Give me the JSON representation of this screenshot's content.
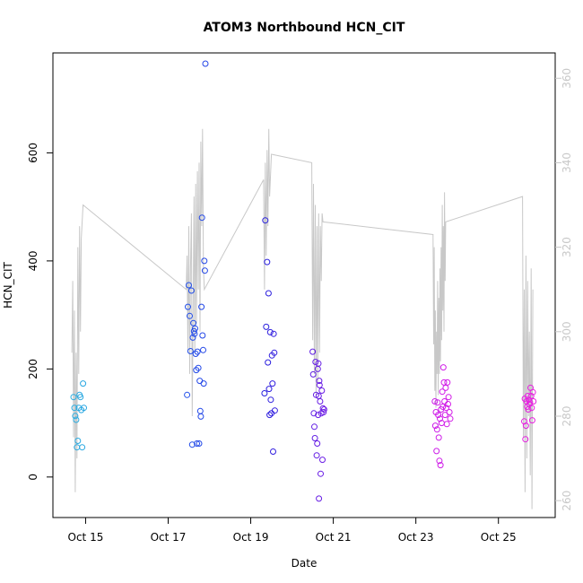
{
  "chart_data": {
    "type": "scatter",
    "title": "ATOM3 Northbound HCN_CIT",
    "xlabel": "Date",
    "ylabel": "HCN_CIT",
    "xlim": [
      "2017-10-14 05:00",
      "2017-10-26 09:00"
    ],
    "ylim": [
      -75,
      785
    ],
    "y2lim": [
      256,
      366
    ],
    "x_ticks": [
      {
        "date": "2017-10-15",
        "label": "Oct 15"
      },
      {
        "date": "2017-10-17",
        "label": "Oct 17"
      },
      {
        "date": "2017-10-19",
        "label": "Oct 19"
      },
      {
        "date": "2017-10-21",
        "label": "Oct 21"
      },
      {
        "date": "2017-10-23",
        "label": "Oct 23"
      },
      {
        "date": "2017-10-25",
        "label": "Oct 25"
      }
    ],
    "y_ticks": [
      0,
      200,
      400,
      600
    ],
    "y2_ticks": [
      260,
      280,
      300,
      320,
      340,
      360
    ],
    "grid": false,
    "legend": "none",
    "colors": {
      "frame": "#000000",
      "secondary_line": "#c8c8c8",
      "secondary_axis": "#c8c8c8",
      "point_ramp": [
        "#29aee0",
        "#2460ee",
        "#2020dd",
        "#8a1ce8",
        "#d01ce8",
        "#e820e0"
      ]
    },
    "points": [
      {
        "x": "2017-10-14 17:00",
        "y": 148
      },
      {
        "x": "2017-10-14 17:30",
        "y": 128
      },
      {
        "x": "2017-10-14 18:00",
        "y": 113
      },
      {
        "x": "2017-10-14 18:30",
        "y": 106
      },
      {
        "x": "2017-10-14 19:00",
        "y": 55
      },
      {
        "x": "2017-10-14 19:30",
        "y": 67
      },
      {
        "x": "2017-10-14 20:00",
        "y": 128
      },
      {
        "x": "2017-10-14 20:30",
        "y": 152
      },
      {
        "x": "2017-10-14 21:00",
        "y": 148
      },
      {
        "x": "2017-10-14 21:30",
        "y": 124
      },
      {
        "x": "2017-10-14 22:00",
        "y": 55
      },
      {
        "x": "2017-10-14 22:30",
        "y": 173
      },
      {
        "x": "2017-10-14 23:00",
        "y": 128
      },
      {
        "x": "2017-10-17 11:00",
        "y": 152
      },
      {
        "x": "2017-10-17 11:30",
        "y": 315
      },
      {
        "x": "2017-10-17 12:00",
        "y": 355
      },
      {
        "x": "2017-10-17 12:30",
        "y": 298
      },
      {
        "x": "2017-10-17 13:00",
        "y": 233
      },
      {
        "x": "2017-10-17 13:30",
        "y": 345
      },
      {
        "x": "2017-10-17 14:00",
        "y": 60
      },
      {
        "x": "2017-10-17 14:20",
        "y": 258
      },
      {
        "x": "2017-10-17 14:40",
        "y": 285
      },
      {
        "x": "2017-10-17 15:00",
        "y": 270
      },
      {
        "x": "2017-10-17 15:20",
        "y": 265
      },
      {
        "x": "2017-10-17 15:40",
        "y": 275
      },
      {
        "x": "2017-10-17 16:00",
        "y": 228
      },
      {
        "x": "2017-10-17 16:20",
        "y": 198
      },
      {
        "x": "2017-10-17 16:40",
        "y": 62
      },
      {
        "x": "2017-10-17 17:00",
        "y": 232
      },
      {
        "x": "2017-10-17 17:30",
        "y": 202
      },
      {
        "x": "2017-10-17 18:00",
        "y": 62
      },
      {
        "x": "2017-10-17 18:20",
        "y": 178
      },
      {
        "x": "2017-10-17 18:40",
        "y": 122
      },
      {
        "x": "2017-10-17 19:00",
        "y": 112
      },
      {
        "x": "2017-10-17 19:20",
        "y": 315
      },
      {
        "x": "2017-10-17 19:40",
        "y": 480
      },
      {
        "x": "2017-10-17 20:00",
        "y": 262
      },
      {
        "x": "2017-10-17 20:20",
        "y": 235
      },
      {
        "x": "2017-10-17 20:40",
        "y": 173
      },
      {
        "x": "2017-10-17 21:00",
        "y": 400
      },
      {
        "x": "2017-10-17 21:20",
        "y": 382
      },
      {
        "x": "2017-10-17 21:40",
        "y": 765
      },
      {
        "x": "2017-10-19 08:00",
        "y": 155
      },
      {
        "x": "2017-10-19 08:30",
        "y": 475
      },
      {
        "x": "2017-10-19 09:00",
        "y": 278
      },
      {
        "x": "2017-10-19 09:30",
        "y": 398
      },
      {
        "x": "2017-10-19 10:00",
        "y": 212
      },
      {
        "x": "2017-10-19 10:20",
        "y": 340
      },
      {
        "x": "2017-10-19 10:40",
        "y": 163
      },
      {
        "x": "2017-10-19 11:00",
        "y": 115
      },
      {
        "x": "2017-10-19 11:20",
        "y": 268
      },
      {
        "x": "2017-10-19 11:40",
        "y": 143
      },
      {
        "x": "2017-10-19 12:00",
        "y": 118
      },
      {
        "x": "2017-10-19 12:20",
        "y": 225
      },
      {
        "x": "2017-10-19 12:40",
        "y": 173
      },
      {
        "x": "2017-10-19 13:00",
        "y": 47
      },
      {
        "x": "2017-10-19 13:20",
        "y": 265
      },
      {
        "x": "2017-10-19 13:40",
        "y": 230
      },
      {
        "x": "2017-10-19 14:00",
        "y": 123
      },
      {
        "x": "2017-10-20 12:00",
        "y": 232
      },
      {
        "x": "2017-10-20 12:20",
        "y": 190
      },
      {
        "x": "2017-10-20 12:40",
        "y": 118
      },
      {
        "x": "2017-10-20 13:00",
        "y": 93
      },
      {
        "x": "2017-10-20 13:20",
        "y": 72
      },
      {
        "x": "2017-10-20 13:40",
        "y": 213
      },
      {
        "x": "2017-10-20 14:00",
        "y": 152
      },
      {
        "x": "2017-10-20 14:20",
        "y": 40
      },
      {
        "x": "2017-10-20 14:40",
        "y": 62
      },
      {
        "x": "2017-10-20 15:00",
        "y": 200
      },
      {
        "x": "2017-10-20 15:10",
        "y": 115
      },
      {
        "x": "2017-10-20 15:20",
        "y": 210
      },
      {
        "x": "2017-10-20 15:30",
        "y": 150
      },
      {
        "x": "2017-10-20 15:40",
        "y": -40
      },
      {
        "x": "2017-10-20 15:50",
        "y": 178
      },
      {
        "x": "2017-10-20 16:00",
        "y": 170
      },
      {
        "x": "2017-10-20 16:20",
        "y": 140
      },
      {
        "x": "2017-10-20 16:40",
        "y": 6
      },
      {
        "x": "2017-10-20 17:00",
        "y": 118
      },
      {
        "x": "2017-10-20 17:20",
        "y": 160
      },
      {
        "x": "2017-10-20 17:40",
        "y": 32
      },
      {
        "x": "2017-10-20 18:00",
        "y": 127
      },
      {
        "x": "2017-10-20 18:20",
        "y": 120
      },
      {
        "x": "2017-10-20 18:40",
        "y": 125
      },
      {
        "x": "2017-10-23 11:00",
        "y": 140
      },
      {
        "x": "2017-10-23 11:20",
        "y": 95
      },
      {
        "x": "2017-10-23 11:40",
        "y": 120
      },
      {
        "x": "2017-10-23 12:00",
        "y": 48
      },
      {
        "x": "2017-10-23 12:20",
        "y": 88
      },
      {
        "x": "2017-10-23 12:40",
        "y": 138
      },
      {
        "x": "2017-10-23 13:00",
        "y": 115
      },
      {
        "x": "2017-10-23 13:20",
        "y": 73
      },
      {
        "x": "2017-10-23 13:40",
        "y": 30
      },
      {
        "x": "2017-10-23 14:00",
        "y": 108
      },
      {
        "x": "2017-10-23 14:20",
        "y": 22
      },
      {
        "x": "2017-10-23 14:40",
        "y": 125
      },
      {
        "x": "2017-10-23 15:00",
        "y": 100
      },
      {
        "x": "2017-10-23 15:20",
        "y": 158
      },
      {
        "x": "2017-10-23 15:40",
        "y": 130
      },
      {
        "x": "2017-10-23 16:00",
        "y": 203
      },
      {
        "x": "2017-10-23 16:20",
        "y": 175
      },
      {
        "x": "2017-10-23 16:40",
        "y": 140
      },
      {
        "x": "2017-10-23 17:00",
        "y": 115
      },
      {
        "x": "2017-10-23 17:20",
        "y": 165
      },
      {
        "x": "2017-10-23 17:40",
        "y": 128
      },
      {
        "x": "2017-10-23 18:00",
        "y": 98
      },
      {
        "x": "2017-10-23 18:20",
        "y": 175
      },
      {
        "x": "2017-10-23 18:40",
        "y": 135
      },
      {
        "x": "2017-10-23 19:00",
        "y": 148
      },
      {
        "x": "2017-10-23 19:30",
        "y": 120
      },
      {
        "x": "2017-10-23 20:00",
        "y": 108
      },
      {
        "x": "2017-10-25 15:00",
        "y": 103
      },
      {
        "x": "2017-10-25 15:20",
        "y": 145
      },
      {
        "x": "2017-10-25 15:40",
        "y": 70
      },
      {
        "x": "2017-10-25 16:00",
        "y": 95
      },
      {
        "x": "2017-10-25 16:20",
        "y": 140
      },
      {
        "x": "2017-10-25 16:40",
        "y": 130
      },
      {
        "x": "2017-10-25 17:00",
        "y": 150
      },
      {
        "x": "2017-10-25 17:20",
        "y": 125
      },
      {
        "x": "2017-10-25 17:40",
        "y": 143
      },
      {
        "x": "2017-10-25 18:00",
        "y": 135
      },
      {
        "x": "2017-10-25 18:20",
        "y": 138
      },
      {
        "x": "2017-10-25 18:40",
        "y": 165
      },
      {
        "x": "2017-10-25 19:00",
        "y": 150
      },
      {
        "x": "2017-10-25 19:20",
        "y": 128
      },
      {
        "x": "2017-10-25 19:40",
        "y": 105
      },
      {
        "x": "2017-10-25 20:00",
        "y": 157
      },
      {
        "x": "2017-10-25 20:20",
        "y": 140
      }
    ],
    "secondary_line": [
      {
        "x": "2017-10-14 16:00",
        "y": 295
      },
      {
        "x": "2017-10-14 16:30",
        "y": 312
      },
      {
        "x": "2017-10-14 17:00",
        "y": 275
      },
      {
        "x": "2017-10-14 17:30",
        "y": 305
      },
      {
        "x": "2017-10-14 18:00",
        "y": 262
      },
      {
        "x": "2017-10-14 18:30",
        "y": 295
      },
      {
        "x": "2017-10-14 19:00",
        "y": 270
      },
      {
        "x": "2017-10-14 19:30",
        "y": 320
      },
      {
        "x": "2017-10-14 20:00",
        "y": 290
      },
      {
        "x": "2017-10-14 20:30",
        "y": 325
      },
      {
        "x": "2017-10-14 21:00",
        "y": 300
      },
      {
        "x": "2017-10-14 21:30",
        "y": 322
      },
      {
        "x": "2017-10-14 22:30",
        "y": 330
      },
      {
        "x": "2017-10-17 10:30",
        "y": 310
      },
      {
        "x": "2017-10-17 11:00",
        "y": 318
      },
      {
        "x": "2017-10-17 11:30",
        "y": 295
      },
      {
        "x": "2017-10-17 12:00",
        "y": 325
      },
      {
        "x": "2017-10-17 12:30",
        "y": 290
      },
      {
        "x": "2017-10-17 13:00",
        "y": 315
      },
      {
        "x": "2017-10-17 13:30",
        "y": 328
      },
      {
        "x": "2017-10-17 14:00",
        "y": 280
      },
      {
        "x": "2017-10-17 14:30",
        "y": 305
      },
      {
        "x": "2017-10-17 15:00",
        "y": 332
      },
      {
        "x": "2017-10-17 15:30",
        "y": 295
      },
      {
        "x": "2017-10-17 16:00",
        "y": 335
      },
      {
        "x": "2017-10-17 16:30",
        "y": 302
      },
      {
        "x": "2017-10-17 17:00",
        "y": 338
      },
      {
        "x": "2017-10-17 17:30",
        "y": 310
      },
      {
        "x": "2017-10-17 18:00",
        "y": 340
      },
      {
        "x": "2017-10-17 18:30",
        "y": 300
      },
      {
        "x": "2017-10-17 19:00",
        "y": 345
      },
      {
        "x": "2017-10-17 19:30",
        "y": 325
      },
      {
        "x": "2017-10-17 20:00",
        "y": 348
      },
      {
        "x": "2017-10-17 20:30",
        "y": 315
      },
      {
        "x": "2017-10-17 21:00",
        "y": 310
      },
      {
        "x": "2017-10-19 07:30",
        "y": 336
      },
      {
        "x": "2017-10-19 08:00",
        "y": 310
      },
      {
        "x": "2017-10-19 08:30",
        "y": 340
      },
      {
        "x": "2017-10-19 09:00",
        "y": 318
      },
      {
        "x": "2017-10-19 09:30",
        "y": 343
      },
      {
        "x": "2017-10-19 10:00",
        "y": 325
      },
      {
        "x": "2017-10-19 10:30",
        "y": 348
      },
      {
        "x": "2017-10-19 11:00",
        "y": 332
      },
      {
        "x": "2017-10-19 12:00",
        "y": 342
      },
      {
        "x": "2017-10-20 11:30",
        "y": 340
      },
      {
        "x": "2017-10-20 12:00",
        "y": 298
      },
      {
        "x": "2017-10-20 12:30",
        "y": 335
      },
      {
        "x": "2017-10-20 13:00",
        "y": 290
      },
      {
        "x": "2017-10-20 13:30",
        "y": 330
      },
      {
        "x": "2017-10-20 14:00",
        "y": 285
      },
      {
        "x": "2017-10-20 14:30",
        "y": 325
      },
      {
        "x": "2017-10-20 15:00",
        "y": 288
      },
      {
        "x": "2017-10-20 15:30",
        "y": 328
      },
      {
        "x": "2017-10-20 16:00",
        "y": 295
      },
      {
        "x": "2017-10-20 16:30",
        "y": 325
      },
      {
        "x": "2017-10-20 17:00",
        "y": 312
      },
      {
        "x": "2017-10-20 17:30",
        "y": 328
      },
      {
        "x": "2017-10-20 18:00",
        "y": 326
      },
      {
        "x": "2017-10-23 10:00",
        "y": 323
      },
      {
        "x": "2017-10-23 10:20",
        "y": 297
      },
      {
        "x": "2017-10-23 10:40",
        "y": 320
      },
      {
        "x": "2017-10-23 11:00",
        "y": 286
      },
      {
        "x": "2017-10-23 11:20",
        "y": 305
      },
      {
        "x": "2017-10-23 11:40",
        "y": 282
      },
      {
        "x": "2017-10-23 12:00",
        "y": 300
      },
      {
        "x": "2017-10-23 12:20",
        "y": 290
      },
      {
        "x": "2017-10-23 12:40",
        "y": 312
      },
      {
        "x": "2017-10-23 13:00",
        "y": 285
      },
      {
        "x": "2017-10-23 13:20",
        "y": 308
      },
      {
        "x": "2017-10-23 13:40",
        "y": 290
      },
      {
        "x": "2017-10-23 14:00",
        "y": 315
      },
      {
        "x": "2017-10-23 14:20",
        "y": 293
      },
      {
        "x": "2017-10-23 14:40",
        "y": 320
      },
      {
        "x": "2017-10-23 15:00",
        "y": 298
      },
      {
        "x": "2017-10-23 15:20",
        "y": 330
      },
      {
        "x": "2017-10-23 15:40",
        "y": 305
      },
      {
        "x": "2017-10-23 16:00",
        "y": 325
      },
      {
        "x": "2017-10-23 16:20",
        "y": 300
      },
      {
        "x": "2017-10-23 16:40",
        "y": 333
      },
      {
        "x": "2017-10-23 17:00",
        "y": 312
      },
      {
        "x": "2017-10-23 17:20",
        "y": 326
      },
      {
        "x": "2017-10-25 14:00",
        "y": 332
      },
      {
        "x": "2017-10-25 14:30",
        "y": 275
      },
      {
        "x": "2017-10-25 15:00",
        "y": 310
      },
      {
        "x": "2017-10-25 15:30",
        "y": 262
      },
      {
        "x": "2017-10-25 16:00",
        "y": 318
      },
      {
        "x": "2017-10-25 16:30",
        "y": 270
      },
      {
        "x": "2017-10-25 17:00",
        "y": 312
      },
      {
        "x": "2017-10-25 17:30",
        "y": 280
      },
      {
        "x": "2017-10-25 18:00",
        "y": 300
      },
      {
        "x": "2017-10-25 18:30",
        "y": 266
      },
      {
        "x": "2017-10-25 19:00",
        "y": 315
      },
      {
        "x": "2017-10-25 19:30",
        "y": 258
      },
      {
        "x": "2017-10-25 20:00",
        "y": 310
      }
    ]
  }
}
